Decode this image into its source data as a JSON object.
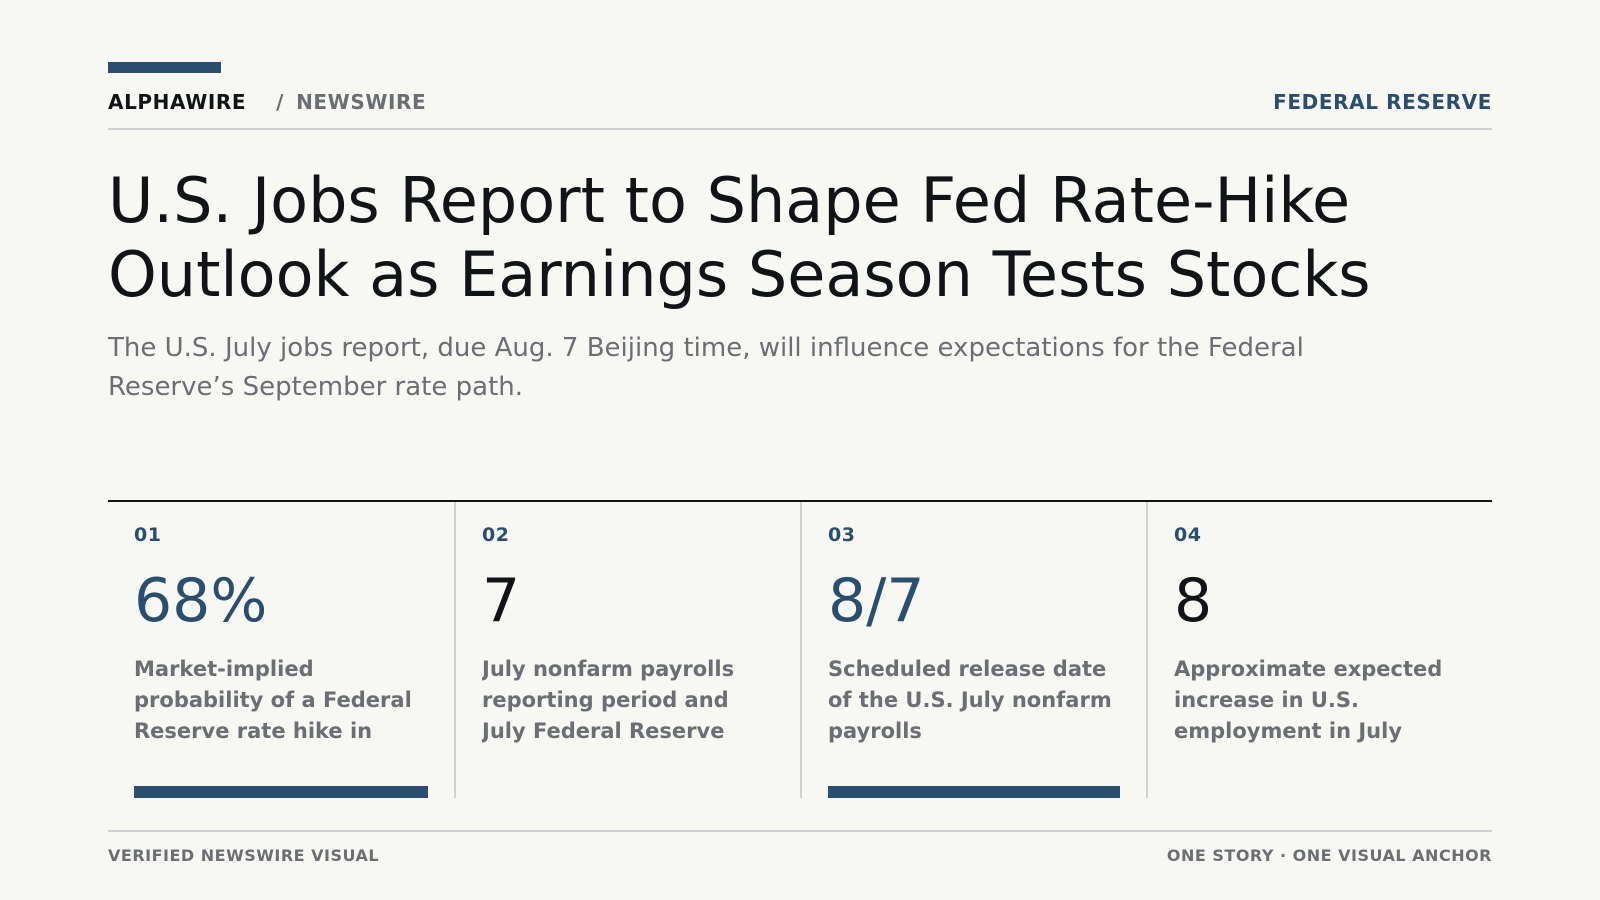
{
  "masthead": {
    "brand": "ALPHAWIRE",
    "separator": "/",
    "section": "NEWSWIRE",
    "topic": "FEDERAL RESERVE"
  },
  "headline": "U.S. Jobs Report to Shape Fed Rate-Hike Outlook as Earnings Season Tests Stocks",
  "dek": "The U.S. July jobs report, due Aug. 7 Beijing time, will influence expectations for the Federal Reserve’s September rate path.",
  "stats": [
    {
      "index": "01",
      "value": "68%",
      "label": "Market-implied probability of a Federal Reserve rate hike in",
      "accent": true
    },
    {
      "index": "02",
      "value": "7",
      "label": "July nonfarm payrolls reporting period and July Federal Reserve",
      "accent": false
    },
    {
      "index": "03",
      "value": "8/7",
      "label": "Scheduled release date of the U.S. July nonfarm payrolls",
      "accent": true
    },
    {
      "index": "04",
      "value": "8",
      "label": "Approximate expected increase in U.S. employment in July",
      "accent": false
    }
  ],
  "footer": {
    "left": "VERIFIED NEWSWIRE VISUAL",
    "right": "ONE STORY · ONE VISUAL ANCHOR"
  },
  "colors": {
    "accent": "#2b4d6e",
    "text": "#111416",
    "muted": "#6b6f73",
    "background": "#f7f7f4"
  }
}
